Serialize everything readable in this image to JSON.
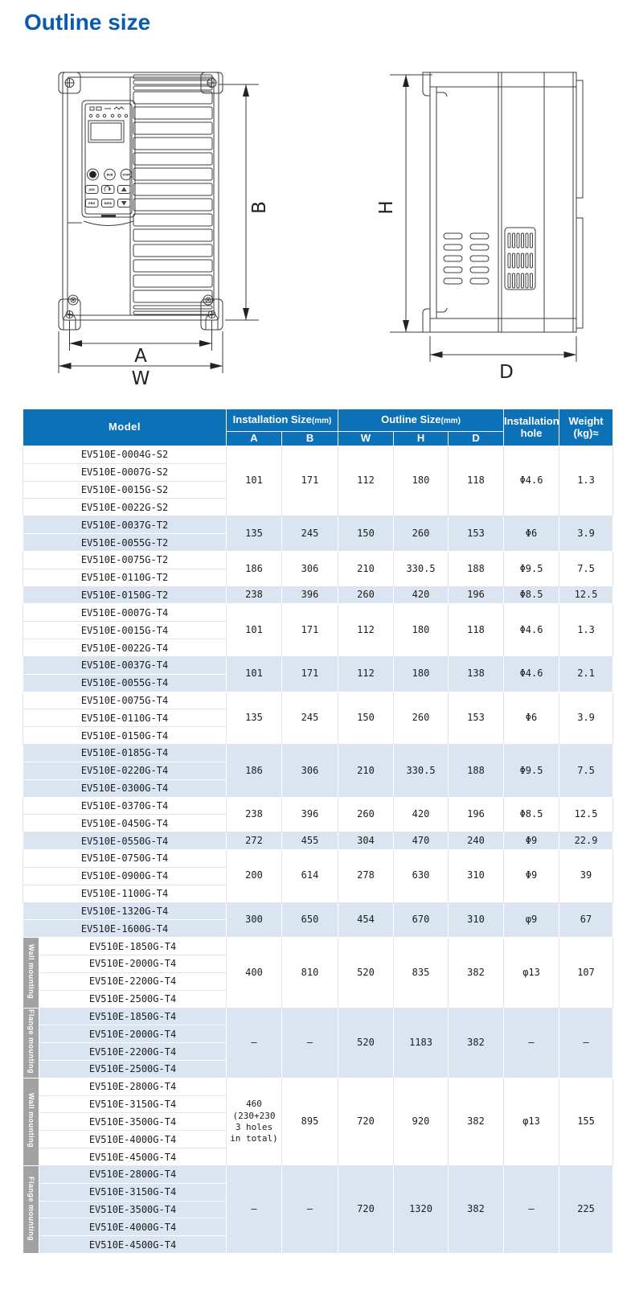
{
  "page": {
    "title": "Outline size"
  },
  "colors": {
    "title_blue": "#0b5ab1",
    "header_blue": "#0d71b8",
    "row_light_blue": "#dbe5f1",
    "mount_band_gray": "#a2a2a2",
    "drawing_line": "#3c3c3c"
  },
  "drawings": {
    "front": {
      "a": "A",
      "b": "B",
      "w": "W"
    },
    "side": {
      "h": "H",
      "d": "D"
    },
    "keypad": {
      "run": "RUN",
      "stop": "STOP",
      "jog": "JOG",
      "prg": "PRG",
      "data": "DATA"
    }
  },
  "table": {
    "headers": {
      "model": "Model",
      "installation_size": "Installation Size",
      "outline_size": "Outline Size",
      "mm": "(mm)",
      "sub": [
        "A",
        "B",
        "W",
        "H",
        "D"
      ],
      "installation_hole": "Installation hole",
      "weight": "Weight (kg)≈"
    },
    "groups": [
      {
        "shade": "white",
        "mount": null,
        "models": [
          "EV510E-0004G-S2",
          "EV510E-0007G-S2",
          "EV510E-0015G-S2",
          "EV510E-0022G-S2"
        ],
        "a": "101",
        "b": "171",
        "w": "112",
        "h": "180",
        "d": "118",
        "hole": "Φ4.6",
        "weight": "1.3"
      },
      {
        "shade": "blue",
        "mount": null,
        "models": [
          "EV510E-0037G-T2",
          "EV510E-0055G-T2"
        ],
        "a": "135",
        "b": "245",
        "w": "150",
        "h": "260",
        "d": "153",
        "hole": "Φ6",
        "weight": "3.9"
      },
      {
        "shade": "white",
        "mount": null,
        "models": [
          "EV510E-0075G-T2",
          "EV510E-0110G-T2"
        ],
        "a": "186",
        "b": "306",
        "w": "210",
        "h": "330.5",
        "d": "188",
        "hole": "Φ9.5",
        "weight": "7.5"
      },
      {
        "shade": "blue",
        "mount": null,
        "models": [
          "EV510E-0150G-T2"
        ],
        "a": "238",
        "b": "396",
        "w": "260",
        "h": "420",
        "d": "196",
        "hole": "Φ8.5",
        "weight": "12.5"
      },
      {
        "shade": "white",
        "mount": null,
        "models": [
          "EV510E-0007G-T4",
          "EV510E-0015G-T4",
          "EV510E-0022G-T4"
        ],
        "a": "101",
        "b": "171",
        "w": "112",
        "h": "180",
        "d": "118",
        "hole": "Φ4.6",
        "weight": "1.3"
      },
      {
        "shade": "blue",
        "mount": null,
        "models": [
          "EV510E-0037G-T4",
          "EV510E-0055G-T4"
        ],
        "a": "101",
        "b": "171",
        "w": "112",
        "h": "180",
        "d": "138",
        "hole": "Φ4.6",
        "weight": "2.1"
      },
      {
        "shade": "white",
        "mount": null,
        "models": [
          "EV510E-0075G-T4",
          "EV510E-0110G-T4",
          "EV510E-0150G-T4"
        ],
        "a": "135",
        "b": "245",
        "w": "150",
        "h": "260",
        "d": "153",
        "hole": "Φ6",
        "weight": "3.9"
      },
      {
        "shade": "blue",
        "mount": null,
        "models": [
          "EV510E-0185G-T4",
          "EV510E-0220G-T4",
          "EV510E-0300G-T4"
        ],
        "a": "186",
        "b": "306",
        "w": "210",
        "h": "330.5",
        "d": "188",
        "hole": "Φ9.5",
        "weight": "7.5"
      },
      {
        "shade": "white",
        "mount": null,
        "models": [
          "EV510E-0370G-T4",
          "EV510E-0450G-T4"
        ],
        "a": "238",
        "b": "396",
        "w": "260",
        "h": "420",
        "d": "196",
        "hole": "Φ8.5",
        "weight": "12.5"
      },
      {
        "shade": "blue",
        "mount": null,
        "models": [
          "EV510E-0550G-T4"
        ],
        "a": "272",
        "b": "455",
        "w": "304",
        "h": "470",
        "d": "240",
        "hole": "Φ9",
        "weight": "22.9"
      },
      {
        "shade": "white",
        "mount": null,
        "models": [
          "EV510E-0750G-T4",
          "EV510E-0900G-T4",
          "EV510E-1100G-T4"
        ],
        "a": "200",
        "b": "614",
        "w": "278",
        "h": "630",
        "d": "310",
        "hole": "Φ9",
        "weight": "39"
      },
      {
        "shade": "blue",
        "mount": null,
        "models": [
          "EV510E-1320G-T4",
          "EV510E-1600G-T4"
        ],
        "a": "300",
        "b": "650",
        "w": "454",
        "h": "670",
        "d": "310",
        "hole": "φ9",
        "weight": "67"
      },
      {
        "shade": "white",
        "mount": "Wall mounting",
        "models": [
          "EV510E-1850G-T4",
          "EV510E-2000G-T4",
          "EV510E-2200G-T4",
          "EV510E-2500G-T4"
        ],
        "a": "400",
        "b": "810",
        "w": "520",
        "h": "835",
        "d": "382",
        "hole": "φ13",
        "weight": "107"
      },
      {
        "shade": "blue",
        "mount": "Flange mounting",
        "models": [
          "EV510E-1850G-T4",
          "EV510E-2000G-T4",
          "EV510E-2200G-T4",
          "EV510E-2500G-T4"
        ],
        "a": "–",
        "b": "–",
        "w": "520",
        "h": "1183",
        "d": "382",
        "hole": "–",
        "weight": "–"
      },
      {
        "shade": "white",
        "mount": "Wall mounting",
        "models": [
          "EV510E-2800G-T4",
          "EV510E-3150G-T4",
          "EV510E-3500G-T4",
          "EV510E-4000G-T4",
          "EV510E-4500G-T4"
        ],
        "a": "460\n(230+230\n3 holes\nin total)",
        "b": "895",
        "w": "720",
        "h": "920",
        "d": "382",
        "hole": "φ13",
        "weight": "155"
      },
      {
        "shade": "blue",
        "mount": "Flange mounting",
        "models": [
          "EV510E-2800G-T4",
          "EV510E-3150G-T4",
          "EV510E-3500G-T4",
          "EV510E-4000G-T4",
          "EV510E-4500G-T4"
        ],
        "a": "–",
        "b": "–",
        "w": "720",
        "h": "1320",
        "d": "382",
        "hole": "–",
        "weight": "225"
      }
    ]
  }
}
